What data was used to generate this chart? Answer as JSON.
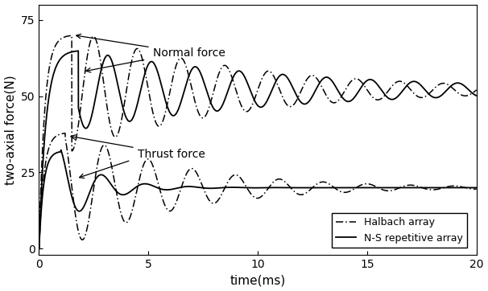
{
  "xlabel": "time(ms)",
  "ylabel": "two-axial force(N)",
  "xlim": [
    0,
    20
  ],
  "ylim": [
    -2,
    80
  ],
  "xticks": [
    0,
    5,
    10,
    15,
    20
  ],
  "yticks": [
    0,
    25,
    50,
    75
  ],
  "legend_labels": [
    "Halbach array",
    "N-S repetitive array"
  ],
  "annotation_normal": "Normal force",
  "annotation_thrust": "Thrust force",
  "line_color": "#000000",
  "background_color": "#ffffff"
}
